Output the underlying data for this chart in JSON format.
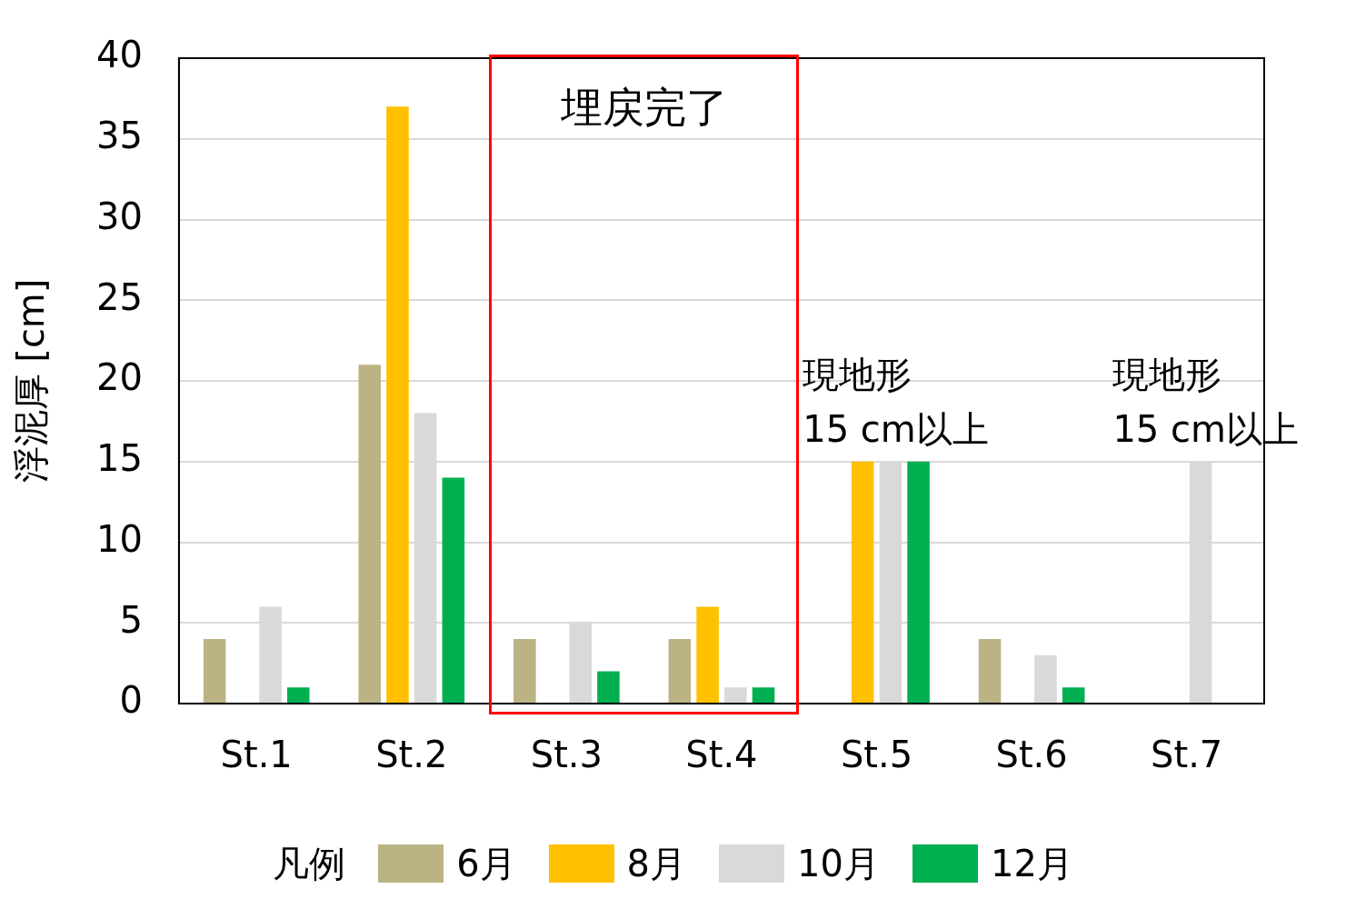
{
  "chart_data": {
    "type": "bar",
    "ylabel": "浮泥厚 [cm]",
    "legend_title": "凡例",
    "categories": [
      "St.1",
      "St.2",
      "St.3",
      "St.4",
      "St.5",
      "St.6",
      "St.7"
    ],
    "series": [
      {
        "name": "6月",
        "color": "#bcb385",
        "values": [
          4,
          21,
          4,
          4,
          null,
          4,
          null
        ]
      },
      {
        "name": "8月",
        "color": "#ffc000",
        "values": [
          0,
          37,
          0,
          6,
          15,
          0,
          null
        ]
      },
      {
        "name": "10月",
        "color": "#d9d9d9",
        "values": [
          6,
          18,
          5,
          1,
          15,
          3,
          15
        ]
      },
      {
        "name": "12月",
        "color": "#00b050",
        "values": [
          1,
          14,
          2,
          1,
          15,
          1,
          null
        ]
      }
    ],
    "ylim": [
      0,
      40
    ],
    "yticks": [
      0,
      5,
      10,
      15,
      20,
      25,
      30,
      35,
      40
    ],
    "grid": "y",
    "legend": "bottom",
    "annotations": [
      "埋戻完了",
      {
        "text": "現地形\n15 cm以上",
        "x": "St.5",
        "y": 15
      },
      {
        "text": "現地形\n15 cm以上",
        "x": "St.7",
        "y": 15
      }
    ]
  }
}
